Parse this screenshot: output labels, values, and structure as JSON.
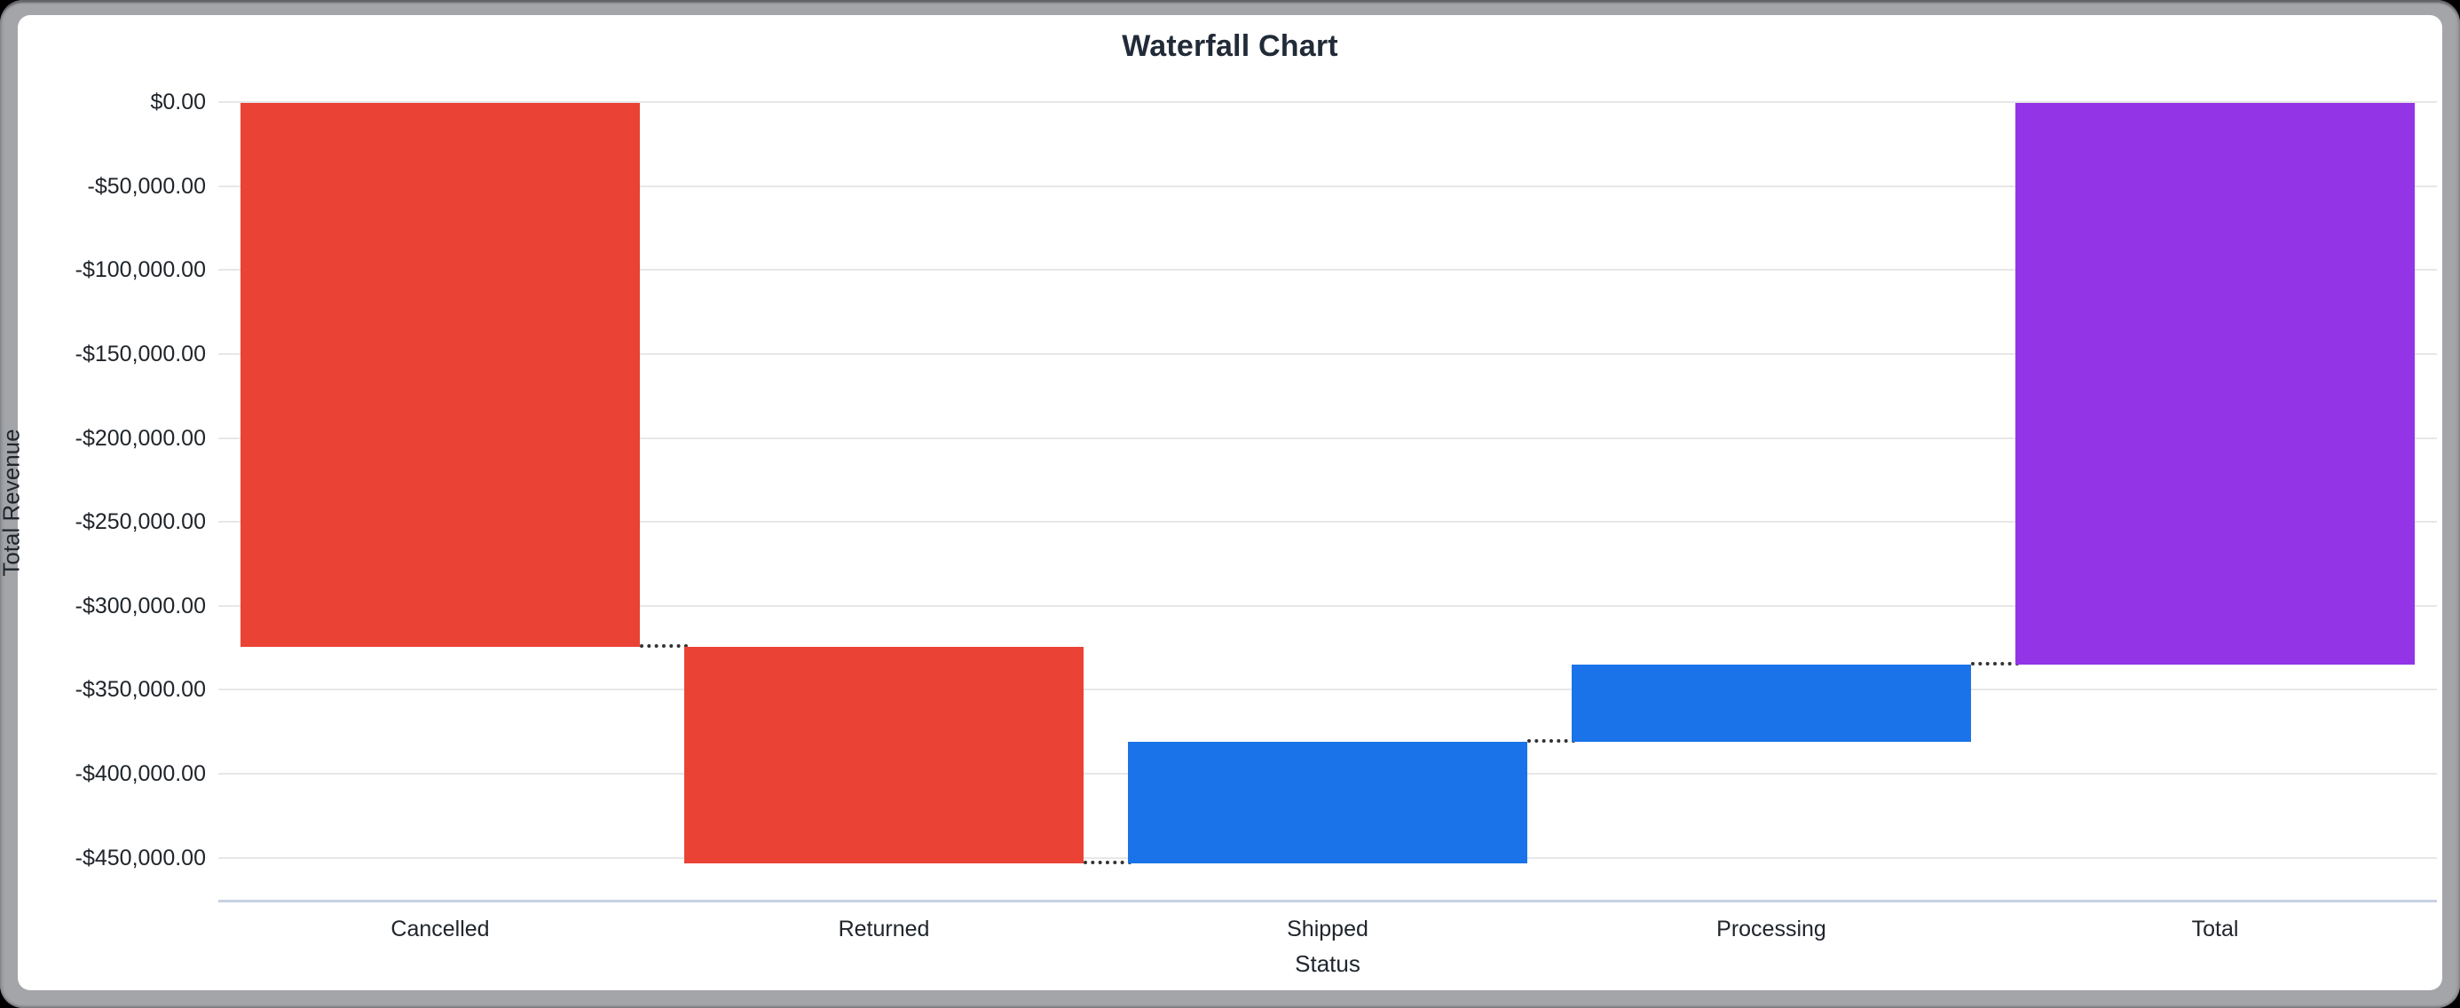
{
  "chart_data": {
    "type": "bar",
    "subtype": "waterfall",
    "title": "Waterfall Chart",
    "xlabel": "Status",
    "ylabel": "Total Revenue",
    "categories": [
      "Cancelled",
      "Returned",
      "Shipped",
      "Processing",
      "Total"
    ],
    "series": [
      {
        "name": "Total Revenue",
        "increments": [
          -324000,
          -129000,
          72500,
          46000
        ],
        "total": -334500
      }
    ],
    "bars": [
      {
        "label": "Cancelled",
        "from": 0,
        "to": -324000,
        "kind": "decrease",
        "color": "#ea4335"
      },
      {
        "label": "Returned",
        "from": -324000,
        "to": -453000,
        "kind": "decrease",
        "color": "#ea4335"
      },
      {
        "label": "Shipped",
        "from": -453000,
        "to": -380500,
        "kind": "increase",
        "color": "#1a73e8"
      },
      {
        "label": "Processing",
        "from": -380500,
        "to": -334500,
        "kind": "increase",
        "color": "#1a73e8"
      },
      {
        "label": "Total",
        "from": 0,
        "to": -334500,
        "kind": "total",
        "color": "#9334e6"
      }
    ],
    "y_ticks": [
      {
        "value": 0,
        "label": "$0.00"
      },
      {
        "value": -50000,
        "label": "-$50,000.00"
      },
      {
        "value": -100000,
        "label": "-$100,000.00"
      },
      {
        "value": -150000,
        "label": "-$150,000.00"
      },
      {
        "value": -200000,
        "label": "-$200,000.00"
      },
      {
        "value": -250000,
        "label": "-$250,000.00"
      },
      {
        "value": -300000,
        "label": "-$300,000.00"
      },
      {
        "value": -350000,
        "label": "-$350,000.00"
      },
      {
        "value": -400000,
        "label": "-$400,000.00"
      },
      {
        "value": -450000,
        "label": "-$450,000.00"
      }
    ],
    "ylim": [
      -475000,
      0
    ],
    "grid": true,
    "legend": "none",
    "colors": {
      "decrease": "#ea4335",
      "increase": "#1a73e8",
      "total": "#9334e6",
      "gridline": "#e7e7e7",
      "axis_baseline": "#c7d1e3",
      "connector": "#333333",
      "text": "#20252b",
      "title_text": "#222b38",
      "frame": "#a3a5a9",
      "card_background": "#ffffff"
    }
  }
}
